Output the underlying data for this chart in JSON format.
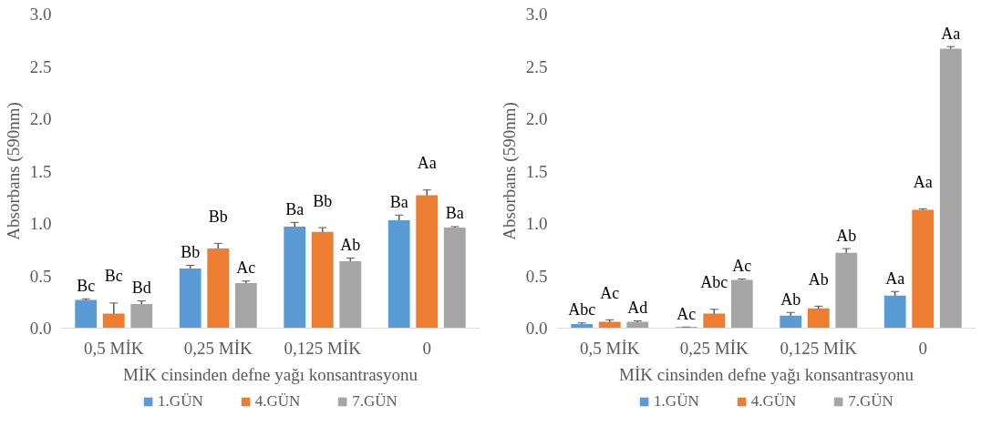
{
  "chart_data": [
    {
      "type": "bar",
      "xlabel": "MİK cinsinden defne yağı konsantrasyonu",
      "ylabel": "Absorbans (590nm)",
      "categories": [
        "0,5 MİK",
        "0,25 MİK",
        "0,125 MİK",
        "0"
      ],
      "ylim": [
        0,
        3.0
      ],
      "yticks": [
        {
          "value": 0,
          "label": "0.0"
        },
        {
          "value": 0.5,
          "label": "0.5"
        },
        {
          "value": 1.0,
          "label": "1.0"
        },
        {
          "value": 1.5,
          "label": "1.5"
        },
        {
          "value": 2.0,
          "label": "2.0"
        },
        {
          "value": 2.5,
          "label": "2.5"
        },
        {
          "value": 3.0,
          "label": "3.0"
        }
      ],
      "grid": false,
      "legend": "bottom",
      "series": [
        {
          "name": "1.GÜN",
          "color": "#5b9bd5",
          "values": [
            0.27,
            0.57,
            0.97,
            1.03
          ],
          "errors": [
            0.01,
            0.03,
            0.04,
            0.05
          ],
          "value_labels": [
            "Bc",
            "Bb",
            "Ba",
            "Ba"
          ]
        },
        {
          "name": "4.GÜN",
          "color": "#ed7d31",
          "values": [
            0.14,
            0.76,
            0.92,
            1.27
          ],
          "errors": [
            0.1,
            0.05,
            0.04,
            0.05
          ],
          "value_labels": [
            "Bc",
            "Bb",
            "Bb",
            "Aa"
          ]
        },
        {
          "name": "7.GÜN",
          "color": "#a5a5a5",
          "values": [
            0.23,
            0.43,
            0.64,
            0.96
          ],
          "errors": [
            0.03,
            0.02,
            0.03,
            0.01
          ],
          "value_labels": [
            "Bd",
            "Ac",
            "Ab",
            "Ba"
          ]
        }
      ]
    },
    {
      "type": "bar",
      "xlabel": "MİK cinsinden defne yağı konsantrasyonu",
      "ylabel": "Absorbans (590nm)",
      "categories": [
        "0,5 MİK",
        "0,25 MİK",
        "0,125 MİK",
        "0"
      ],
      "ylim": [
        0,
        3.0
      ],
      "yticks": [
        {
          "value": 0,
          "label": "0.0"
        },
        {
          "value": 0.5,
          "label": "0.5"
        },
        {
          "value": 1.0,
          "label": "1.0"
        },
        {
          "value": 1.5,
          "label": "1.5"
        },
        {
          "value": 2.0,
          "label": "2.0"
        },
        {
          "value": 2.5,
          "label": "2.5"
        },
        {
          "value": 3.0,
          "label": "3.0"
        }
      ],
      "grid": false,
      "legend": "bottom",
      "series": [
        {
          "name": "1.GÜN",
          "color": "#5b9bd5",
          "values": [
            0.04,
            0.01,
            0.12,
            0.31
          ],
          "errors": [
            0.01,
            0.0,
            0.03,
            0.04
          ],
          "value_labels": [
            "Abc",
            "Ac",
            "Ab",
            "Aa"
          ]
        },
        {
          "name": "4.GÜN",
          "color": "#ed7d31",
          "values": [
            0.06,
            0.14,
            0.19,
            1.13
          ],
          "errors": [
            0.02,
            0.04,
            0.02,
            0.01
          ],
          "value_labels": [
            "Ac",
            "Abc",
            "Ab",
            "Aa"
          ]
        },
        {
          "name": "7.GÜN",
          "color": "#a5a5a5",
          "values": [
            0.06,
            0.46,
            0.72,
            2.67
          ],
          "errors": [
            0.01,
            0.01,
            0.04,
            0.02
          ],
          "value_labels": [
            "Ad",
            "Ac",
            "Ab",
            "Aa"
          ]
        }
      ]
    }
  ]
}
